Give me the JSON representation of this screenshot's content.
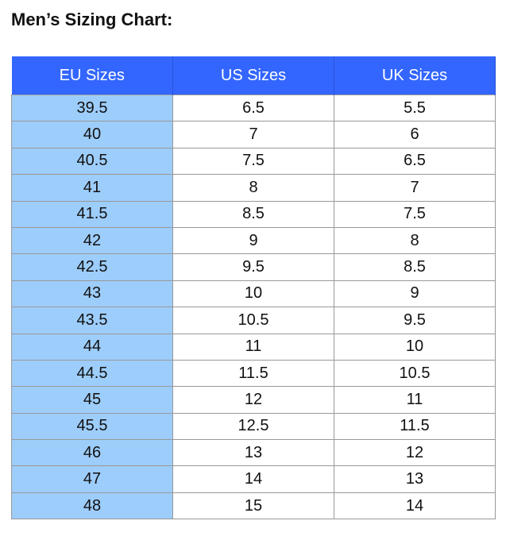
{
  "title": "Men’s Sizing Chart:",
  "table": {
    "header": [
      "EU Sizes",
      "US Sizes",
      "UK Sizes"
    ],
    "rows": [
      [
        "39.5",
        "6.5",
        "5.5"
      ],
      [
        "40",
        "7",
        "6"
      ],
      [
        "40.5",
        "7.5",
        "6.5"
      ],
      [
        "41",
        "8",
        "7"
      ],
      [
        "41.5",
        "8.5",
        "7.5"
      ],
      [
        "42",
        "9",
        "8"
      ],
      [
        "42.5",
        "9.5",
        "8.5"
      ],
      [
        "43",
        "10",
        "9"
      ],
      [
        "43.5",
        "10.5",
        "9.5"
      ],
      [
        "44",
        "11",
        "10"
      ],
      [
        "44.5",
        "11.5",
        "10.5"
      ],
      [
        "45",
        "12",
        "11"
      ],
      [
        "45.5",
        "12.5",
        "11.5"
      ],
      [
        "46",
        "13",
        "12"
      ],
      [
        "47",
        "14",
        "13"
      ],
      [
        "48",
        "15",
        "14"
      ]
    ]
  }
}
